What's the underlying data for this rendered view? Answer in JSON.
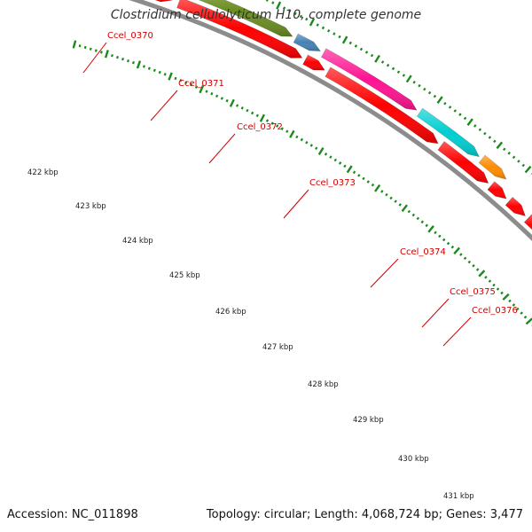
{
  "title": "Clostridium cellulolyticum H10, complete genome",
  "footer": {
    "accession": "Accession: NC_011898",
    "summary": "Topology: circular; Length: 4,068,724 bp; Genes: 3,477"
  },
  "colors": {
    "cds_red": "#ff0000",
    "backbone": "#8c8c8c",
    "tick_green": "#1a8a1a",
    "label_red": "#d00000"
  },
  "coordinate_labels": [
    "422 kbp",
    "423 kbp",
    "424 kbp",
    "425 kbp",
    "426 kbp",
    "427 kbp",
    "428 kbp",
    "429 kbp",
    "430 kbp",
    "431 kbp"
  ],
  "highlighted_genes": [
    {
      "name": "Ccel_0370",
      "color": "#f08080"
    },
    {
      "name": "Ccel_0371",
      "color": "#6b8e23"
    },
    {
      "name": "Ccel_0372",
      "color": "#4682b4"
    },
    {
      "name": "Ccel_0373",
      "color": "#ff1493"
    },
    {
      "name": "Ccel_0374",
      "color": "#00ced1"
    },
    {
      "name": "Ccel_0375",
      "color": "#ff8c00"
    },
    {
      "name": "Ccel_0376",
      "color": "#696969"
    },
    {
      "name": "",
      "color": "#adff2f"
    }
  ]
}
